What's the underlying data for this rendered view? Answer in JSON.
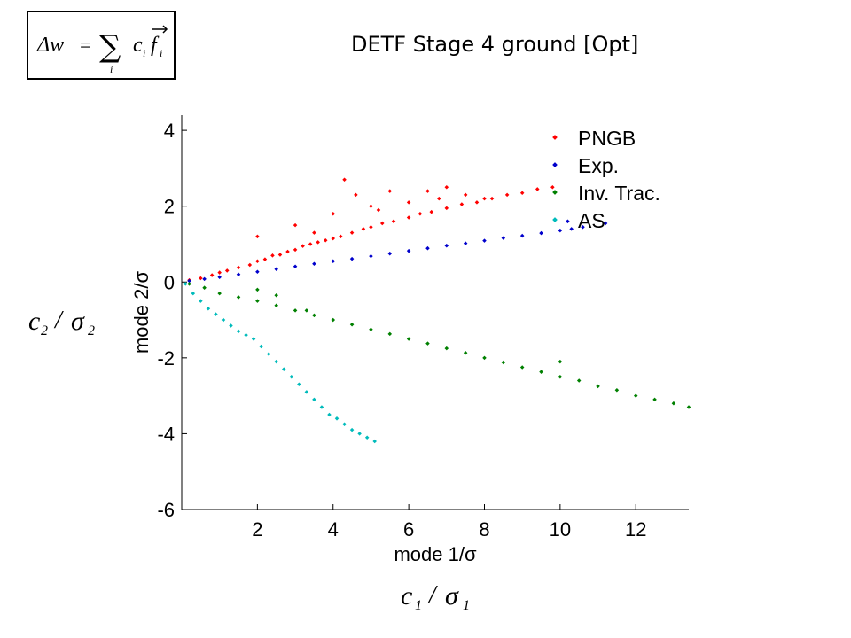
{
  "slide": {
    "title": "DETF Stage 4 ground [Opt]",
    "formula": {
      "delta_w": "Δw",
      "equals": "=",
      "sum": "∑",
      "index": "i",
      "term_c": "c",
      "term_f": "f",
      "sub": "i"
    },
    "side_label_y": {
      "var": "c",
      "sub": "2",
      "slash": "/",
      "sigma": "σ",
      "sigma_sub": "2"
    },
    "side_label_x": {
      "var": "c",
      "sub": "1",
      "slash": "/",
      "sigma": "σ",
      "sigma_sub": "1"
    }
  },
  "chart_data": {
    "type": "scatter",
    "xlabel": "mode 1/σ",
    "ylabel": "mode 2/σ",
    "xlim": [
      0,
      13.4
    ],
    "ylim": [
      -6,
      4.4
    ],
    "xticks": [
      2,
      4,
      6,
      8,
      10,
      12
    ],
    "yticks": [
      4,
      2,
      0,
      -2,
      -4,
      -6
    ],
    "grid": false,
    "legend_position": "top-right",
    "series": [
      {
        "name": "PNGB",
        "color": "#ff0000",
        "points": [
          [
            0.2,
            0.05
          ],
          [
            0.5,
            0.1
          ],
          [
            0.8,
            0.18
          ],
          [
            1.0,
            0.25
          ],
          [
            1.2,
            0.3
          ],
          [
            1.5,
            0.38
          ],
          [
            1.8,
            0.45
          ],
          [
            2.0,
            0.55
          ],
          [
            2.2,
            0.6
          ],
          [
            2.4,
            0.7
          ],
          [
            2.6,
            0.72
          ],
          [
            2.8,
            0.8
          ],
          [
            3.0,
            0.85
          ],
          [
            3.2,
            0.95
          ],
          [
            3.4,
            1.0
          ],
          [
            3.6,
            1.05
          ],
          [
            3.8,
            1.1
          ],
          [
            4.0,
            1.15
          ],
          [
            4.2,
            1.2
          ],
          [
            4.5,
            1.3
          ],
          [
            4.8,
            1.4
          ],
          [
            5.0,
            1.45
          ],
          [
            5.3,
            1.55
          ],
          [
            5.6,
            1.6
          ],
          [
            6.0,
            1.7
          ],
          [
            6.3,
            1.8
          ],
          [
            6.6,
            1.85
          ],
          [
            7.0,
            1.95
          ],
          [
            7.4,
            2.05
          ],
          [
            7.8,
            2.1
          ],
          [
            8.2,
            2.2
          ],
          [
            8.6,
            2.3
          ],
          [
            9.0,
            2.35
          ],
          [
            9.4,
            2.45
          ],
          [
            9.8,
            2.5
          ],
          [
            2.0,
            1.2
          ],
          [
            3.0,
            1.5
          ],
          [
            4.3,
            2.7
          ],
          [
            4.6,
            2.3
          ],
          [
            5.0,
            2.0
          ],
          [
            5.5,
            2.4
          ],
          [
            6.0,
            2.1
          ],
          [
            6.5,
            2.4
          ],
          [
            7.0,
            2.5
          ],
          [
            7.5,
            2.3
          ],
          [
            8.0,
            2.2
          ],
          [
            4.0,
            1.8
          ],
          [
            3.5,
            1.3
          ],
          [
            5.2,
            1.9
          ],
          [
            6.8,
            2.2
          ]
        ]
      },
      {
        "name": "Exp.",
        "color": "#0000cc",
        "points": [
          [
            0.2,
            0.03
          ],
          [
            0.6,
            0.08
          ],
          [
            1.0,
            0.13
          ],
          [
            1.5,
            0.2
          ],
          [
            2.0,
            0.27
          ],
          [
            2.5,
            0.34
          ],
          [
            3.0,
            0.41
          ],
          [
            3.5,
            0.48
          ],
          [
            4.0,
            0.55
          ],
          [
            4.5,
            0.61
          ],
          [
            5.0,
            0.68
          ],
          [
            5.5,
            0.75
          ],
          [
            6.0,
            0.82
          ],
          [
            6.5,
            0.89
          ],
          [
            7.0,
            0.96
          ],
          [
            7.5,
            1.02
          ],
          [
            8.0,
            1.09
          ],
          [
            8.5,
            1.16
          ],
          [
            9.0,
            1.22
          ],
          [
            9.5,
            1.29
          ],
          [
            10.0,
            1.36
          ],
          [
            10.3,
            1.4
          ],
          [
            10.6,
            1.45
          ],
          [
            11.2,
            1.55
          ],
          [
            10.2,
            1.6
          ]
        ]
      },
      {
        "name": "Inv. Trac.",
        "color": "#008000",
        "points": [
          [
            0.2,
            -0.05
          ],
          [
            0.6,
            -0.15
          ],
          [
            1.0,
            -0.3
          ],
          [
            1.5,
            -0.4
          ],
          [
            2.0,
            -0.5
          ],
          [
            2.5,
            -0.62
          ],
          [
            3.0,
            -0.75
          ],
          [
            3.5,
            -0.88
          ],
          [
            4.0,
            -1.0
          ],
          [
            4.5,
            -1.12
          ],
          [
            5.0,
            -1.25
          ],
          [
            5.5,
            -1.37
          ],
          [
            6.0,
            -1.5
          ],
          [
            6.5,
            -1.62
          ],
          [
            7.0,
            -1.75
          ],
          [
            7.5,
            -1.87
          ],
          [
            8.0,
            -2.0
          ],
          [
            8.5,
            -2.12
          ],
          [
            9.0,
            -2.25
          ],
          [
            9.5,
            -2.37
          ],
          [
            10.0,
            -2.5
          ],
          [
            10.5,
            -2.6
          ],
          [
            11.0,
            -2.75
          ],
          [
            11.5,
            -2.85
          ],
          [
            12.0,
            -3.0
          ],
          [
            12.5,
            -3.1
          ],
          [
            13.0,
            -3.2
          ],
          [
            13.4,
            -3.3
          ],
          [
            2.0,
            -0.2
          ],
          [
            2.5,
            -0.35
          ],
          [
            3.3,
            -0.75
          ],
          [
            10.0,
            -2.1
          ]
        ]
      },
      {
        "name": "AS",
        "color": "#00bbbb",
        "points": [
          [
            0.1,
            -0.05
          ],
          [
            0.3,
            -0.3
          ],
          [
            0.5,
            -0.5
          ],
          [
            0.7,
            -0.7
          ],
          [
            0.9,
            -0.85
          ],
          [
            1.1,
            -1.0
          ],
          [
            1.3,
            -1.15
          ],
          [
            1.5,
            -1.3
          ],
          [
            1.7,
            -1.4
          ],
          [
            1.9,
            -1.5
          ],
          [
            2.1,
            -1.7
          ],
          [
            2.3,
            -1.9
          ],
          [
            2.5,
            -2.1
          ],
          [
            2.7,
            -2.3
          ],
          [
            2.9,
            -2.5
          ],
          [
            3.1,
            -2.7
          ],
          [
            3.3,
            -2.9
          ],
          [
            3.5,
            -3.1
          ],
          [
            3.7,
            -3.3
          ],
          [
            3.9,
            -3.5
          ],
          [
            4.1,
            -3.6
          ],
          [
            4.3,
            -3.75
          ],
          [
            4.5,
            -3.9
          ],
          [
            4.7,
            -4.0
          ],
          [
            4.9,
            -4.1
          ],
          [
            5.1,
            -4.2
          ]
        ]
      }
    ]
  }
}
